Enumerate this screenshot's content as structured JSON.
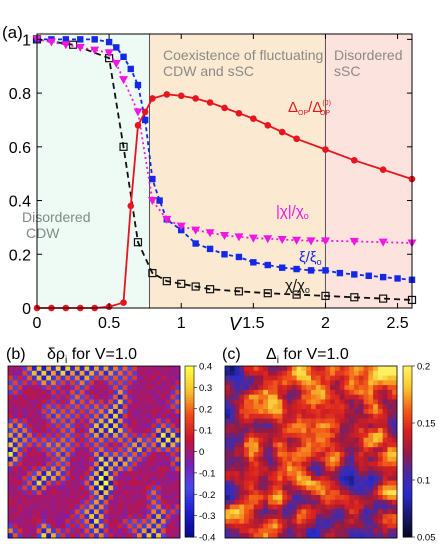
{
  "chart_data": [
    {
      "type": "line",
      "panel_label": "(a)",
      "xlabel": "V",
      "xlim": [
        0,
        2.6
      ],
      "ylim": [
        0,
        1.02
      ],
      "xticks": [
        0,
        0.5,
        1,
        1.5,
        2,
        2.5
      ],
      "xtick_labels": [
        "0",
        "0.5",
        "1",
        "1.5",
        "2",
        "2.5"
      ],
      "yticks": [
        0,
        0.2,
        0.4,
        0.6,
        0.8,
        1
      ],
      "ytick_labels": [
        "0",
        "0.2",
        "0.4",
        "0.6",
        "0.8",
        "1"
      ],
      "regions": [
        {
          "x0": 0,
          "x1": 0.78,
          "color": "#eefbf4",
          "label_lines": [
            "Disordered",
            "CDW"
          ]
        },
        {
          "x0": 0.78,
          "x1": 2.0,
          "color": "#fbe9d2",
          "label_lines": [
            "Coexistence of fluctuating",
            "CDW and sSC"
          ]
        },
        {
          "x0": 2.0,
          "x1": 2.6,
          "color": "#fde3de",
          "label_lines": [
            "Disordered",
            "sSC"
          ]
        }
      ],
      "region_boundaries": [
        0.78,
        2.0
      ],
      "series": [
        {
          "id": "delta",
          "label_main": "Δ",
          "label_sub1": "OP",
          "label_mid": "/Δ",
          "label_sub2": "OP",
          "label_sup2": "(0)",
          "color": "#e8141e",
          "marker": "circle",
          "dash": "",
          "x": [
            0.0,
            0.1,
            0.2,
            0.3,
            0.4,
            0.5,
            0.6,
            0.65,
            0.7,
            0.75,
            0.8,
            0.9,
            1.0,
            1.1,
            1.2,
            1.3,
            1.4,
            1.5,
            1.6,
            1.7,
            1.8,
            2.0,
            2.2,
            2.4,
            2.6
          ],
          "y": [
            0.0,
            0.0,
            0.0,
            0.0,
            0.0,
            0.005,
            0.02,
            0.38,
            0.68,
            0.73,
            0.78,
            0.795,
            0.79,
            0.78,
            0.765,
            0.745,
            0.725,
            0.705,
            0.68,
            0.655,
            0.63,
            0.59,
            0.55,
            0.515,
            0.48
          ]
        },
        {
          "id": "xi",
          "label_main": "ξ/ξ",
          "label_sub": "o",
          "color": "#1428e6",
          "marker": "square",
          "dash": "4,3",
          "x": [
            0.0,
            0.1,
            0.2,
            0.3,
            0.4,
            0.5,
            0.55,
            0.6,
            0.65,
            0.7,
            0.75,
            0.8,
            0.85,
            0.9,
            1.0,
            1.1,
            1.2,
            1.3,
            1.4,
            1.5,
            1.6,
            1.7,
            1.8,
            1.9,
            2.0,
            2.1,
            2.2,
            2.3,
            2.4,
            2.5,
            2.6
          ],
          "y": [
            1.0,
            1.0,
            1.0,
            1.0,
            1.0,
            0.99,
            0.97,
            0.935,
            0.89,
            0.83,
            0.7,
            0.48,
            0.4,
            0.33,
            0.29,
            0.24,
            0.22,
            0.2,
            0.19,
            0.17,
            0.16,
            0.15,
            0.145,
            0.14,
            0.14,
            0.13,
            0.125,
            0.12,
            0.115,
            0.11,
            0.105
          ]
        },
        {
          "id": "chi_abs",
          "label_main": "|χ|/χ",
          "label_sub": "o",
          "color": "#ee18e0",
          "marker": "triangle-down",
          "dash": "2,3",
          "x": [
            0.0,
            0.1,
            0.2,
            0.3,
            0.4,
            0.5,
            0.55,
            0.6,
            0.7,
            0.8,
            0.9,
            1.0,
            1.1,
            1.2,
            1.3,
            1.4,
            1.5,
            1.6,
            1.7,
            1.8,
            1.9,
            2.0,
            2.2,
            2.4,
            2.6
          ],
          "y": [
            1.0,
            0.99,
            0.98,
            0.97,
            0.96,
            0.95,
            0.91,
            0.85,
            0.73,
            0.4,
            0.33,
            0.305,
            0.29,
            0.28,
            0.27,
            0.265,
            0.26,
            0.258,
            0.255,
            0.252,
            0.25,
            0.25,
            0.248,
            0.245,
            0.242
          ]
        },
        {
          "id": "chi",
          "label_main": "χ/χ",
          "label_sub": "o",
          "color": "#111111",
          "marker": "square-open",
          "dash": "6,4",
          "x": [
            0.0,
            0.25,
            0.5,
            0.6,
            0.7,
            0.8,
            0.9,
            1.0,
            1.1,
            1.2,
            1.4,
            1.6,
            1.8,
            2.0,
            2.2,
            2.4,
            2.6
          ],
          "y": [
            1.0,
            0.98,
            0.93,
            0.6,
            0.245,
            0.13,
            0.1,
            0.09,
            0.08,
            0.07,
            0.062,
            0.055,
            0.05,
            0.045,
            0.04,
            0.035,
            0.03
          ]
        }
      ]
    },
    {
      "type": "heatmap",
      "panel_label": "(b)",
      "title_sym": "δρ",
      "title_sub": "i",
      "title_rest": " for V=1.0",
      "colorbar_ticks": [
        "0.4",
        "0.3",
        "0.2",
        "0.1",
        "0",
        "-0.1",
        "-0.2",
        "-0.3",
        "-0.4"
      ],
      "zlim": [
        -0.4,
        0.4
      ],
      "colormap": [
        "#0a0a8c",
        "#1e1ecf",
        "#4848e8",
        "#7a1fb0",
        "#c81432",
        "#f04a18",
        "#f7c22a",
        "#ffff40"
      ]
    },
    {
      "type": "heatmap",
      "panel_label": "(c)",
      "title_sym": "Δ",
      "title_sub": "i",
      "title_rest": " for V=1.0",
      "colorbar_ticks": [
        "0.2",
        "0.15",
        "0.1",
        "0.05"
      ],
      "zlim": [
        0.05,
        0.2
      ],
      "colormap": [
        "#08082a",
        "#1a1a70",
        "#2a2acd",
        "#4a2aa0",
        "#9a1a40",
        "#d82020",
        "#f26018",
        "#f8c430",
        "#fff060"
      ]
    }
  ]
}
